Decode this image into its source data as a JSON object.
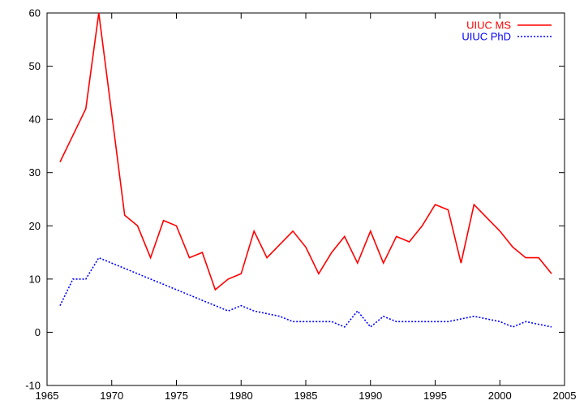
{
  "chart_data": {
    "type": "line",
    "title": "",
    "xlabel": "",
    "ylabel": "",
    "xlim": [
      1965,
      2005
    ],
    "ylim": [
      -10,
      60
    ],
    "xticks": [
      1965,
      1970,
      1975,
      1980,
      1985,
      1990,
      1995,
      2000,
      2005
    ],
    "yticks": [
      -10,
      0,
      10,
      20,
      30,
      40,
      50,
      60
    ],
    "grid": false,
    "legend_position": "top-right",
    "series": [
      {
        "name": "UIUC MS",
        "color": "#ff0000",
        "style": "solid",
        "x": [
          1966,
          1967,
          1968,
          1969,
          1970,
          1971,
          1972,
          1973,
          1974,
          1975,
          1976,
          1977,
          1978,
          1979,
          1980,
          1981,
          1982,
          1983,
          1984,
          1985,
          1986,
          1987,
          1988,
          1989,
          1990,
          1991,
          1992,
          1993,
          1994,
          1995,
          1996,
          1997,
          1998,
          1999,
          2000,
          2001,
          2002,
          2003,
          2004
        ],
        "values": [
          32,
          37,
          42,
          60,
          41,
          22,
          20,
          14,
          21,
          20,
          14,
          15,
          8,
          10,
          11,
          19,
          14,
          16.5,
          19,
          16,
          11,
          15,
          18,
          13,
          19,
          13,
          18,
          17,
          20,
          24,
          23,
          13,
          24,
          21.5,
          19,
          16,
          14,
          14,
          11
        ]
      },
      {
        "name": "UIUC PhD",
        "color": "#0000ff",
        "style": "dotted",
        "x": [
          1966,
          1967,
          1968,
          1969,
          1970,
          1971,
          1972,
          1973,
          1974,
          1975,
          1976,
          1977,
          1978,
          1979,
          1980,
          1981,
          1982,
          1983,
          1984,
          1985,
          1986,
          1987,
          1988,
          1989,
          1990,
          1991,
          1992,
          1993,
          1994,
          1995,
          1996,
          1997,
          1998,
          1999,
          2000,
          2001,
          2002,
          2003,
          2004
        ],
        "values": [
          5,
          10,
          10,
          14,
          13,
          12,
          11,
          10,
          9,
          8,
          7,
          6,
          5,
          4,
          5,
          4,
          3.5,
          3,
          2,
          2,
          2,
          2,
          1,
          4,
          1,
          3,
          2,
          2,
          2,
          2,
          2,
          2.5,
          3,
          2.5,
          2,
          1,
          2,
          1.5,
          1
        ]
      }
    ]
  }
}
